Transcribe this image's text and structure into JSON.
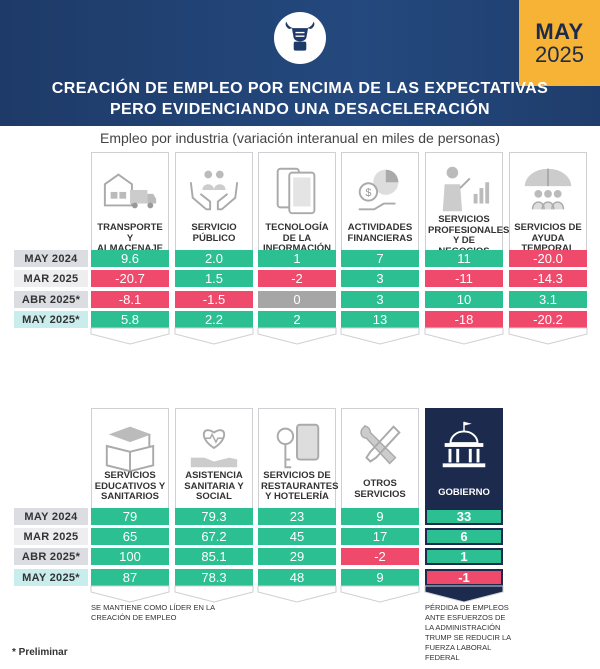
{
  "header": {
    "badge_month": "MAY",
    "badge_year": "2025",
    "title_line1": "CREACIÓN DE EMPLEO POR ENCIMA DE LAS EXPECTATIVAS",
    "title_line2": "PERO EVIDENCIANDO UNA DESACELERACIÓN",
    "logo_icon": "bull-hands-icon"
  },
  "subtitle": "Empleo por industria (variación interanual en miles de personas)",
  "colors": {
    "header_bg": "#24497e",
    "badge": "#f6b335",
    "positive": "#2bbf92",
    "negative": "#ef4a6c",
    "zero": "#a6a6a6",
    "government": "#1c2a4d"
  },
  "row_labels": [
    "MAY 2024",
    "MAR 2025",
    "ABR 2025*",
    "MAY 2025*"
  ],
  "notes": {
    "left": "SE MANTIENE COMO LÍDER EN LA CREACIÓN DE EMPLEO",
    "right": "PÉRDIDA DE EMPLEOS ANTE ESFUERZOS DE LA ADMINISTRACIÓN TRUMP SE REDUCIR LA FUERZA LABORAL FEDERAL"
  },
  "footnote": "* Preliminar",
  "chart_data": {
    "type": "table",
    "title": "CREACIÓN DE EMPLEO POR ENCIMA DE LAS EXPECTATIVAS PERO EVIDENCIANDO UNA DESACELERACIÓN",
    "subtitle": "Empleo por industria (variación interanual en miles de personas)",
    "periods": [
      "MAY 2024",
      "MAR 2025",
      "ABR 2025*",
      "MAY 2025*"
    ],
    "industries": [
      {
        "name": "TRANSPORTE Y ALMACENAJE",
        "icon": "truck-warehouse-icon",
        "display": [
          "9.6",
          "-20.7",
          "-8.1",
          "5.8"
        ],
        "values": [
          9.6,
          -20.7,
          -8.1,
          5.8
        ]
      },
      {
        "name": "SERVICIO PÚBLICO",
        "icon": "hands-people-icon",
        "display": [
          "2.0",
          "1.5",
          "-1.5",
          "2.2"
        ],
        "values": [
          2.0,
          1.5,
          -1.5,
          2.2
        ]
      },
      {
        "name": "TECNOLOGÍA DE LA INFORMACIÓN",
        "icon": "phone-devices-icon",
        "display": [
          "1",
          "-2",
          "0",
          "2"
        ],
        "values": [
          1,
          -2,
          0,
          2
        ]
      },
      {
        "name": "ACTIVIDADES FINANCIERAS",
        "icon": "finance-pie-icon",
        "display": [
          "7",
          "3",
          "3",
          "13"
        ],
        "values": [
          7,
          3,
          3,
          13
        ]
      },
      {
        "name": "SERVICIOS PROFESIONALES Y DE NEGOCIOS",
        "icon": "presenter-chart-icon",
        "display": [
          "11",
          "-11",
          "10",
          "-18"
        ],
        "values": [
          11,
          -11,
          10,
          -18
        ]
      },
      {
        "name": "SERVICIOS DE AYUDA TEMPORAL",
        "icon": "umbrella-people-icon",
        "display": [
          "-20.0",
          "-14.3",
          "3.1",
          "-20.2"
        ],
        "values": [
          -20.0,
          -14.3,
          3.1,
          -20.2
        ]
      },
      {
        "name": "SERVICIOS EDUCATIVOS Y SANITARIOS",
        "icon": "graduation-book-icon",
        "display": [
          "79",
          "65",
          "100",
          "87"
        ],
        "values": [
          79,
          65,
          100,
          87
        ]
      },
      {
        "name": "ASISTENCIA SANITARIA Y SOCIAL",
        "icon": "heart-hand-icon",
        "display": [
          "79.3",
          "67.2",
          "85.1",
          "78.3"
        ],
        "values": [
          79.3,
          67.2,
          85.1,
          78.3
        ]
      },
      {
        "name": "SERVICIOS DE RESTAURANTES Y HOTELERÍA",
        "icon": "key-card-icon",
        "display": [
          "23",
          "45",
          "29",
          "48"
        ],
        "values": [
          23,
          45,
          29,
          48
        ]
      },
      {
        "name": "OTROS SERVICIOS",
        "icon": "tools-icon",
        "display": [
          "9",
          "17",
          "-2",
          "9"
        ],
        "values": [
          9,
          17,
          -2,
          9
        ]
      },
      {
        "name": "GOBIERNO",
        "icon": "government-building-icon",
        "display": [
          "33",
          "6",
          "1",
          "-1"
        ],
        "values": [
          33,
          6,
          1,
          -1
        ]
      }
    ]
  }
}
